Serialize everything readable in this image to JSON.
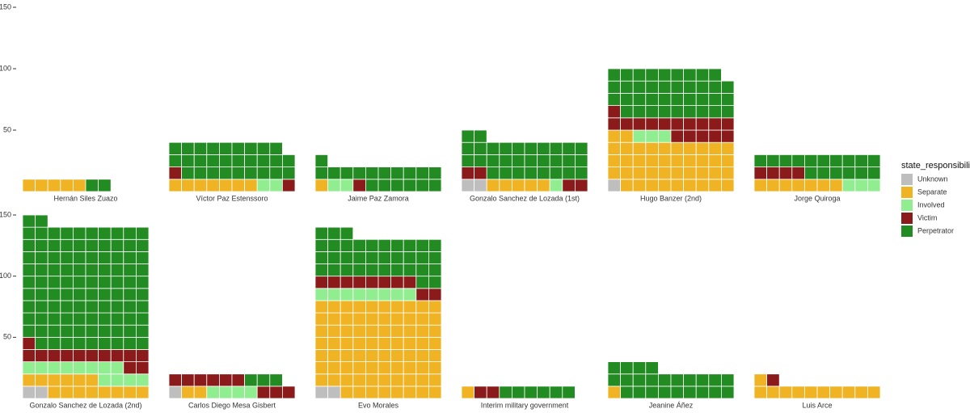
{
  "chart_data": {
    "type": "waffle",
    "legend_title": "state_responsibility",
    "categories": [
      "Hernán Siles Zuazo",
      "Víctor Paz Estenssoro",
      "Jaime Paz Zamora",
      "Gonzalo Sanchez de Lozada (1st)",
      "Hugo Banzer (2nd)",
      "Jorge Quiroga",
      "Gonzalo Sanchez de Lozada (2nd)",
      "Carlos Diego Mesa Gisbert",
      "Evo Morales",
      "Interim military government",
      "Jeanine Áñez",
      "Luis Arce"
    ],
    "series": [
      {
        "name": "Unknown",
        "color": "#bebebe",
        "values": [
          0,
          0,
          0,
          2,
          1,
          0,
          2,
          1,
          2,
          0,
          0,
          0
        ]
      },
      {
        "name": "Separate",
        "color": "#f0b323",
        "values": [
          5,
          7,
          1,
          5,
          41,
          7,
          14,
          2,
          78,
          1,
          1,
          11
        ]
      },
      {
        "name": "Involved",
        "color": "#90ee90",
        "values": [
          0,
          2,
          2,
          1,
          3,
          3,
          12,
          4,
          8,
          0,
          0,
          0
        ]
      },
      {
        "name": "Victim",
        "color": "#8b1a1a",
        "values": [
          0,
          2,
          1,
          4,
          16,
          4,
          13,
          9,
          10,
          2,
          0,
          1
        ]
      },
      {
        "name": "Perpetrator",
        "color": "#228b22",
        "values": [
          2,
          28,
          17,
          30,
          38,
          16,
          101,
          3,
          35,
          6,
          23,
          0
        ]
      }
    ],
    "ylim": [
      0,
      150
    ],
    "yticks": [
      50,
      100,
      150
    ]
  }
}
